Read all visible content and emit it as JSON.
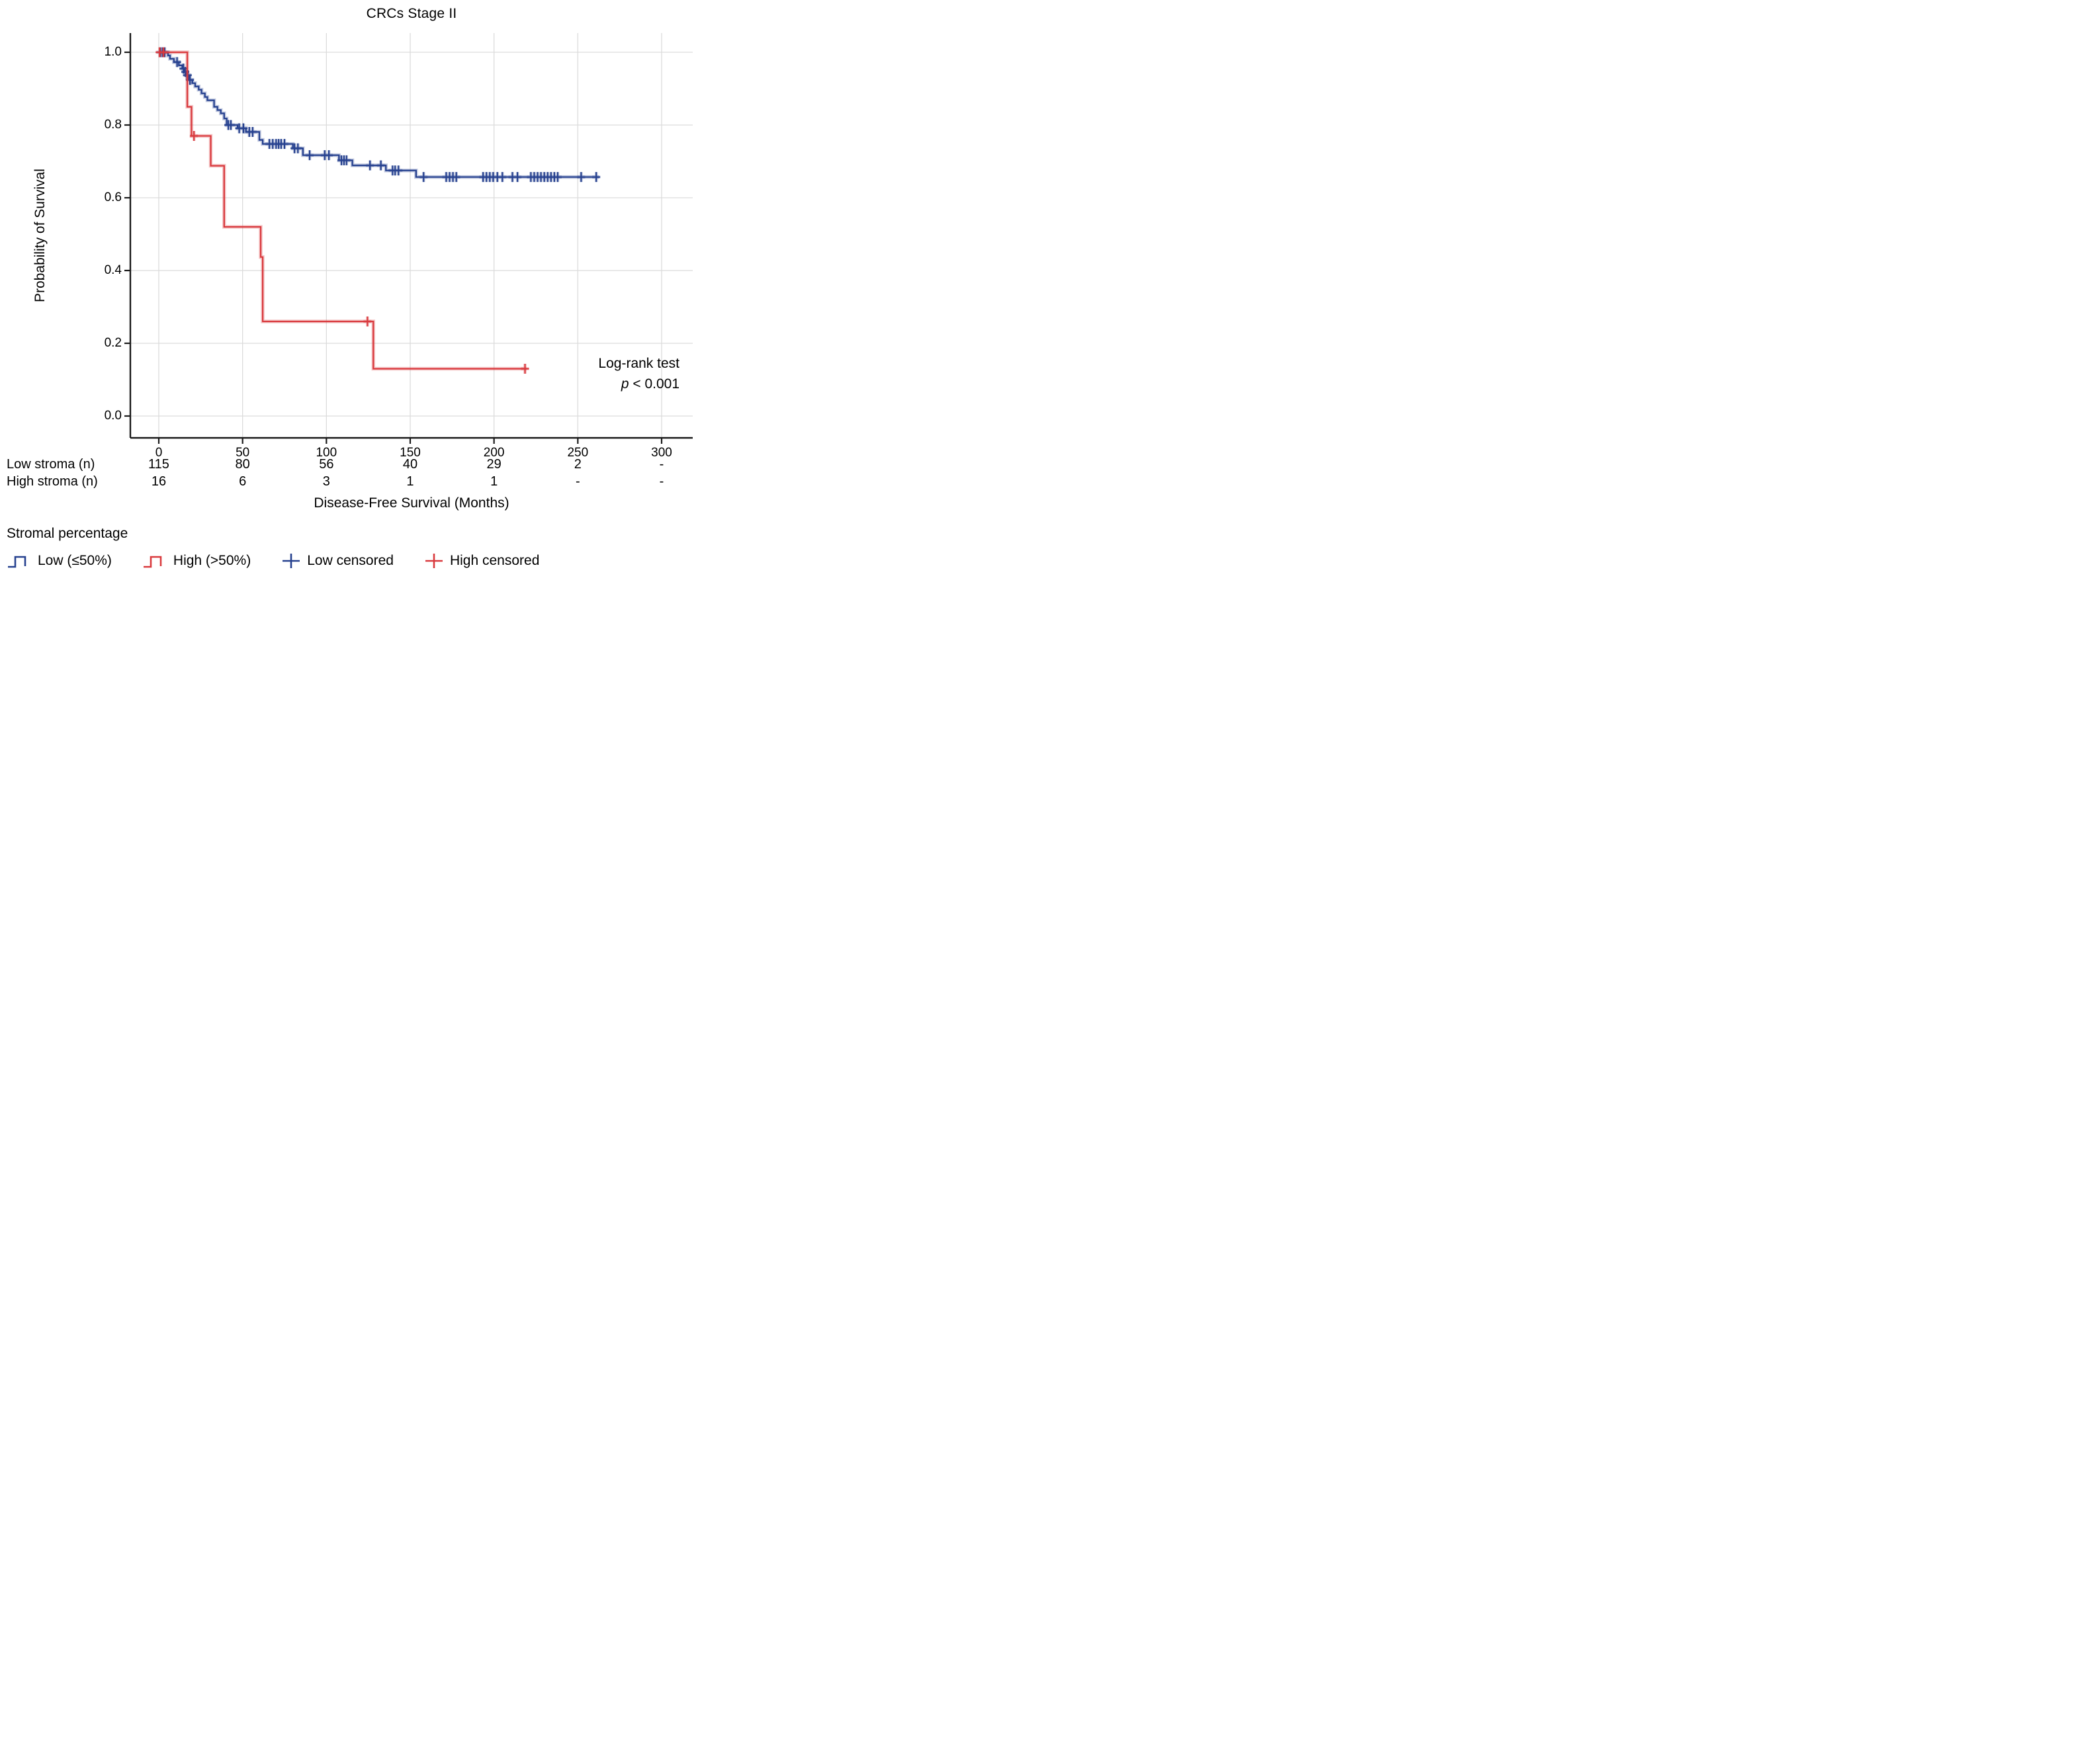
{
  "title": "CRCs Stage II",
  "axes": {
    "y_label": "Probability of Survival",
    "x_label": "Disease-Free Survival (Months)",
    "y_ticks": [
      "1.0",
      "0.8",
      "0.6",
      "0.4",
      "0.2",
      "0.0"
    ],
    "x_ticks": [
      "0",
      "50",
      "100",
      "150",
      "200",
      "250",
      "300"
    ]
  },
  "annotation": {
    "line1": "Log-rank test",
    "p_symbol": "p",
    "p_rest": " < 0.001"
  },
  "risk_table": {
    "rows": [
      {
        "label": "Low stroma (n)",
        "counts": [
          "115",
          "80",
          "56",
          "40",
          "29",
          "2",
          "-"
        ]
      },
      {
        "label": "High stroma (n)",
        "counts": [
          "16",
          "6",
          "3",
          "1",
          "1",
          "-",
          "-"
        ]
      }
    ]
  },
  "legend": {
    "title": "Stromal percentage",
    "items": [
      {
        "label": "Low (≤50%)",
        "type": "step",
        "color": "#26418f"
      },
      {
        "label": "High (>50%)",
        "type": "step",
        "color": "#d93a3e"
      },
      {
        "label": "Low censored",
        "type": "plus",
        "color": "#26418f"
      },
      {
        "label": "High censored",
        "type": "plus",
        "color": "#d93a3e"
      }
    ]
  },
  "colors": {
    "low_stroma": "#26418f",
    "high_stroma": "#d93a3e",
    "grid": "#dcdcdc",
    "spine": "#1a1a1a",
    "text": "#000000"
  },
  "chart_data": {
    "type": "line",
    "subtype": "kaplan-meier-step",
    "title": "CRCs Stage II",
    "xlabel": "Disease-Free Survival (Months)",
    "ylabel": "Probability of Survival",
    "xlim": [
      0,
      300
    ],
    "ylim": [
      0.0,
      1.0
    ],
    "x_tick_values": [
      0,
      50,
      100,
      150,
      200,
      250,
      300
    ],
    "y_tick_values": [
      1.0,
      0.8,
      0.6,
      0.4,
      0.2,
      0.0
    ],
    "grid": true,
    "legend_position": "bottom",
    "annotation": "Log-rank test p < 0.001",
    "series": [
      {
        "name": "Low (≤50%)",
        "color": "#26418f",
        "start": [
          0,
          1.0
        ],
        "end_time": 262.5,
        "steps": [
          [
            5.5,
            0.991
          ],
          [
            6.7,
            0.982
          ],
          [
            9,
            0.973
          ],
          [
            12,
            0.964
          ],
          [
            14,
            0.955
          ],
          [
            15.3,
            0.946
          ],
          [
            16.6,
            0.937
          ],
          [
            18,
            0.924
          ],
          [
            20,
            0.915
          ],
          [
            21.7,
            0.906
          ],
          [
            23.8,
            0.897
          ],
          [
            25.5,
            0.887
          ],
          [
            27.5,
            0.877
          ],
          [
            29,
            0.868
          ],
          [
            33,
            0.85
          ],
          [
            35,
            0.841
          ],
          [
            37,
            0.832
          ],
          [
            39,
            0.818
          ],
          [
            40.5,
            0.8
          ],
          [
            47,
            0.791
          ],
          [
            52,
            0.781
          ],
          [
            60,
            0.759
          ],
          [
            62,
            0.748
          ],
          [
            80,
            0.736
          ],
          [
            86,
            0.717
          ],
          [
            107.5,
            0.703
          ],
          [
            115.5,
            0.689
          ],
          [
            135.5,
            0.675
          ],
          [
            153.5,
            0.657
          ]
        ],
        "censored": [
          [
            1,
            1.0
          ],
          [
            2.2,
            1.0
          ],
          [
            3.5,
            1.0
          ],
          [
            10.9,
            0.973
          ],
          [
            14.7,
            0.955
          ],
          [
            15.8,
            0.946
          ],
          [
            16.8,
            0.937
          ],
          [
            17.3,
            0.937
          ],
          [
            18.6,
            0.924
          ],
          [
            41.5,
            0.8
          ],
          [
            43,
            0.8
          ],
          [
            48,
            0.791
          ],
          [
            50.5,
            0.791
          ],
          [
            54,
            0.781
          ],
          [
            56,
            0.781
          ],
          [
            66,
            0.748
          ],
          [
            68,
            0.748
          ],
          [
            70,
            0.748
          ],
          [
            71.5,
            0.748
          ],
          [
            73,
            0.748
          ],
          [
            75,
            0.748
          ],
          [
            81,
            0.736
          ],
          [
            83,
            0.736
          ],
          [
            90,
            0.717
          ],
          [
            99,
            0.717
          ],
          [
            101.5,
            0.717
          ],
          [
            109,
            0.703
          ],
          [
            110.5,
            0.703
          ],
          [
            112,
            0.703
          ],
          [
            126,
            0.689
          ],
          [
            132.5,
            0.689
          ],
          [
            139.5,
            0.675
          ],
          [
            141,
            0.675
          ],
          [
            143,
            0.675
          ],
          [
            158,
            0.657
          ],
          [
            171.5,
            0.657
          ],
          [
            173.5,
            0.657
          ],
          [
            175.5,
            0.657
          ],
          [
            177.5,
            0.657
          ],
          [
            193.5,
            0.657
          ],
          [
            195.5,
            0.657
          ],
          [
            197.5,
            0.657
          ],
          [
            199.5,
            0.657
          ],
          [
            202,
            0.657
          ],
          [
            205,
            0.657
          ],
          [
            211,
            0.657
          ],
          [
            214,
            0.657
          ],
          [
            222,
            0.657
          ],
          [
            224,
            0.657
          ],
          [
            226,
            0.657
          ],
          [
            228,
            0.657
          ],
          [
            230,
            0.657
          ],
          [
            232,
            0.657
          ],
          [
            234,
            0.657
          ],
          [
            236,
            0.657
          ],
          [
            238,
            0.657
          ],
          [
            252,
            0.657
          ],
          [
            261,
            0.657
          ]
        ]
      },
      {
        "name": "High (>50%)",
        "color": "#d93a3e",
        "start": [
          0,
          1.0
        ],
        "end_time": 219.5,
        "steps": [
          [
            17,
            0.85
          ],
          [
            19.5,
            0.77
          ],
          [
            31,
            0.688
          ],
          [
            39,
            0.52
          ],
          [
            60.8,
            0.437
          ],
          [
            62,
            0.26
          ],
          [
            128,
            0.13
          ]
        ],
        "censored": [
          [
            0.5,
            1.0
          ],
          [
            2.8,
            1.0
          ],
          [
            21,
            0.77
          ],
          [
            124.5,
            0.26
          ],
          [
            218.5,
            0.13
          ]
        ]
      }
    ],
    "risk_table": {
      "times": [
        0,
        50,
        100,
        150,
        200,
        250,
        300
      ],
      "rows": [
        {
          "name": "Low stroma (n)",
          "at_risk": [
            "115",
            "80",
            "56",
            "40",
            "29",
            "2",
            "-"
          ]
        },
        {
          "name": "High stroma (n)",
          "at_risk": [
            "16",
            "6",
            "3",
            "1",
            "1",
            "-",
            "-"
          ]
        }
      ]
    }
  }
}
